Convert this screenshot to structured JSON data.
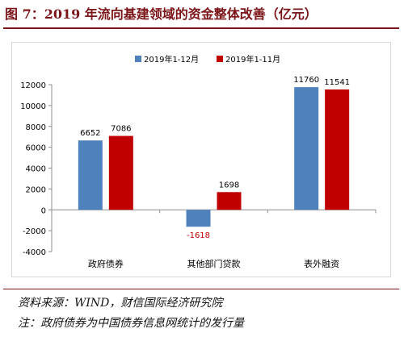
{
  "figure": {
    "title": "图 7：2019 年流向基建领域的资金整体改善（亿元）",
    "source": "资料来源：WIND，财信国际经济研究院",
    "note": "注：政府债券为中国债券信息网统计的发行量"
  },
  "chart_data": {
    "type": "bar",
    "categories": [
      "政府债券",
      "其他部门贷款",
      "表外融资"
    ],
    "series": [
      {
        "name": "2019年1-12月",
        "values": [
          6652,
          -1618,
          11760
        ],
        "color": "#4f81bd"
      },
      {
        "name": "2019年1-11月",
        "values": [
          7086,
          1698,
          11541
        ],
        "color": "#c00000"
      }
    ],
    "ylim": [
      -4000,
      12000
    ],
    "yticks": [
      -4000,
      -2000,
      0,
      2000,
      4000,
      6000,
      8000,
      10000,
      12000
    ],
    "legend_position": "top-center",
    "grid": false,
    "data_label_colors": {
      "positive": "#000000",
      "negative": "#c00000"
    }
  }
}
